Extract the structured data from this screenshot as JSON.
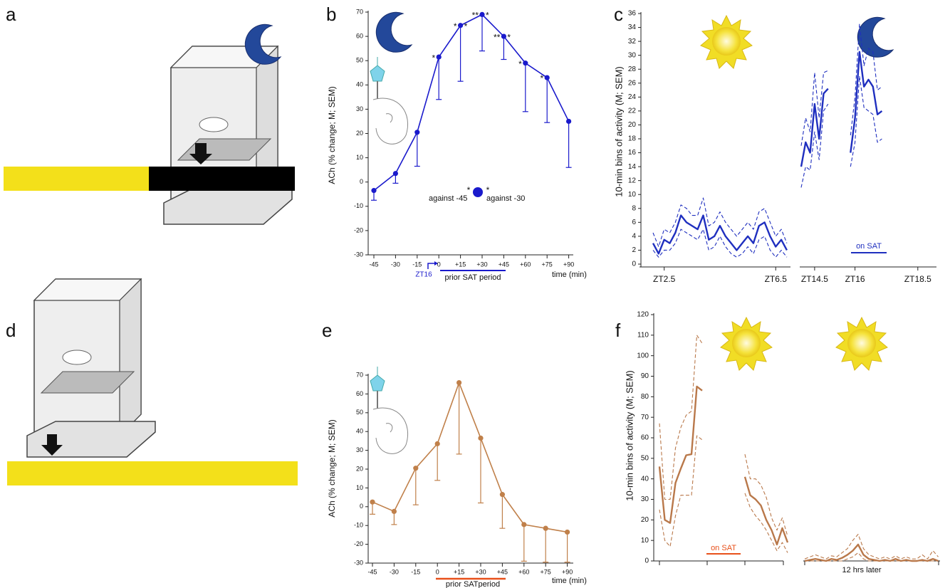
{
  "figure_labels": [
    "a",
    "b",
    "c",
    "d",
    "e",
    "f"
  ],
  "chart_data": [
    {
      "type": "line",
      "ylabel": "ACh (% change; M; SEM)",
      "xlabel": "time (min)",
      "zt_label": "ZT16",
      "period_label": "prior SAT period",
      "legend": {
        "left_label": "against -45",
        "left_mark": "*",
        "right_mark": "*",
        "right_label": "against -30"
      },
      "categories": [
        "-45",
        "-30",
        "-15",
        "0",
        "+15",
        "+30",
        "+45",
        "+60",
        "+75",
        "+90"
      ],
      "values": [
        -3.5,
        3.5,
        20.5,
        51.5,
        64.5,
        69,
        60,
        49,
        43,
        25
      ],
      "errors": [
        4,
        4,
        14,
        17.5,
        23,
        15,
        9.5,
        20,
        18.5,
        19
      ],
      "sig_left": [
        null,
        null,
        null,
        "*",
        "*",
        "**",
        "**",
        "*",
        "*",
        null
      ],
      "sig_right": [
        null,
        null,
        null,
        null,
        "*",
        "*",
        "*",
        null,
        null,
        null
      ],
      "color": "#1a1acc",
      "ylim": [
        -30,
        70
      ],
      "yticks": [
        -30,
        -20,
        -10,
        0,
        10,
        20,
        30,
        40,
        50,
        60,
        70
      ]
    },
    {
      "type": "line",
      "ylabel": "10-min bins of activity (M; SEM)",
      "categories": [
        null,
        null,
        "ZT2.5",
        null,
        null,
        null,
        null,
        null,
        null,
        null,
        null,
        null,
        null,
        null,
        null,
        null,
        null,
        null,
        null,
        null,
        null,
        null,
        "ZT6.5",
        null,
        null
      ],
      "series": [
        {
          "color": "#1f2fbf",
          "style": "solid",
          "values": [
            3,
            1.5,
            3.5,
            3,
            4.5,
            7,
            6,
            5.5,
            5,
            7,
            3.5,
            4,
            5.5,
            4,
            3,
            2,
            3,
            4,
            3,
            5.5,
            6,
            4,
            2.5,
            3.5,
            2
          ]
        },
        {
          "color": "#1f2fbf",
          "style": "dashed",
          "values": [
            4.5,
            2.5,
            5,
            4.5,
            6,
            8.5,
            8,
            7,
            7,
            9.5,
            5.5,
            6,
            7.5,
            6,
            5,
            4,
            5,
            6,
            5,
            7.5,
            8,
            6,
            4,
            5,
            3
          ]
        },
        {
          "color": "#1f2fbf",
          "style": "dashed",
          "values": [
            2,
            1,
            2,
            2,
            3,
            5,
            4.5,
            4,
            3.5,
            5,
            2,
            2.5,
            4,
            2.5,
            1.5,
            1,
            1.5,
            2.5,
            1.5,
            3.5,
            4,
            2,
            1,
            2,
            1
          ]
        }
      ],
      "ylim": [
        0,
        36
      ],
      "yticks": [
        0,
        2,
        4,
        6,
        8,
        10,
        12,
        14,
        16,
        18,
        20,
        22,
        24,
        26,
        28,
        30,
        32,
        34,
        36
      ]
    },
    {
      "type": "line",
      "annotation": "on SAT",
      "categories": [
        null,
        null,
        null,
        "ZT14.5",
        null,
        null,
        null,
        null,
        null,
        null,
        null,
        null,
        "ZT16",
        null,
        null,
        null,
        null,
        null,
        null,
        null,
        null,
        null,
        null,
        null,
        null,
        null,
        "ZT18.5",
        null,
        null,
        null
      ],
      "series": [
        {
          "color": "#1f2fbf",
          "style": "solid",
          "values": [
            14,
            17.5,
            16,
            23,
            18,
            24.5,
            25.2,
            null,
            null,
            null,
            null,
            16,
            21,
            30.5,
            25.5,
            26.5,
            25.5,
            21.5,
            22,
            null,
            null,
            null,
            null,
            null,
            null,
            null,
            null,
            null,
            null,
            null
          ]
        },
        {
          "color": "#1f2fbf",
          "style": "dashed",
          "values": [
            17,
            21,
            19,
            27.5,
            21,
            27.5,
            27.8,
            null,
            null,
            null,
            null,
            18.5,
            24,
            34.5,
            28.5,
            31,
            30.5,
            25,
            25.5,
            null,
            null,
            null,
            null,
            null,
            null,
            null,
            null,
            null,
            null,
            null
          ]
        },
        {
          "color": "#1f2fbf",
          "style": "dashed",
          "values": [
            11,
            14,
            13.5,
            19,
            15,
            22,
            23,
            null,
            null,
            null,
            null,
            14,
            17.5,
            27,
            22.5,
            22,
            21.5,
            17.5,
            18,
            null,
            null,
            null,
            null,
            null,
            null,
            null,
            null,
            null,
            null,
            null
          ]
        }
      ],
      "ylim": [
        0,
        36
      ]
    },
    {
      "type": "line",
      "ylabel": "ACh (% change; M; SEM)",
      "xlabel": "time (min)",
      "period_label": "prior SATperiod",
      "categories": [
        "-45",
        "-30",
        "-15",
        "0",
        "+15",
        "+30",
        "+45",
        "+60",
        "+75",
        "+90"
      ],
      "values": [
        2.5,
        -2.5,
        20.5,
        33.5,
        66,
        36.5,
        6.5,
        -9.5,
        -11.5,
        -13.5
      ],
      "errors": [
        6.5,
        7,
        19.5,
        19.5,
        38,
        34.5,
        18,
        19.5,
        18,
        16
      ],
      "color": "#c0804a",
      "ylim": [
        -30,
        70
      ],
      "yticks": [
        -30,
        -20,
        -10,
        0,
        10,
        20,
        30,
        40,
        50,
        60,
        70
      ]
    },
    {
      "type": "line",
      "ylabel": "10-min bins of activity (M; SEM)",
      "annotation": "on SAT",
      "categories": [
        null,
        null,
        null,
        null,
        null,
        null,
        null,
        null,
        null,
        null,
        null,
        null,
        null,
        null,
        null,
        null,
        null,
        null,
        null,
        null,
        null,
        null,
        null,
        null,
        null
      ],
      "series": [
        {
          "color": "#b9784a",
          "style": "solid",
          "values": [
            46,
            20,
            18.5,
            38,
            45,
            51.5,
            52,
            85,
            83,
            null,
            null,
            null,
            null,
            null,
            null,
            null,
            41,
            32,
            30,
            27,
            20,
            15,
            8,
            16,
            9
          ]
        },
        {
          "color": "#b9784a",
          "style": "dashed",
          "values": [
            67,
            30,
            30,
            55,
            65,
            71,
            73,
            110,
            106,
            null,
            null,
            null,
            null,
            null,
            null,
            null,
            52,
            40,
            40,
            37,
            31,
            21,
            15,
            21,
            12
          ]
        },
        {
          "color": "#b9784a",
          "style": "dashed",
          "values": [
            25,
            10,
            7,
            22,
            32,
            32,
            32,
            61,
            59,
            null,
            null,
            null,
            null,
            null,
            null,
            null,
            33,
            26,
            22,
            19,
            15,
            10,
            5,
            9,
            4
          ]
        }
      ],
      "ylim": [
        0,
        120
      ],
      "yticks": [
        0,
        10,
        20,
        30,
        40,
        50,
        60,
        70,
        80,
        90,
        100,
        110,
        120
      ]
    },
    {
      "type": "line",
      "xlabel": "12 hrs later",
      "categories": [
        null,
        null,
        null,
        null,
        null,
        null,
        null,
        null,
        null,
        null,
        null,
        null,
        null,
        null,
        null,
        null,
        null,
        null,
        null,
        null,
        null,
        null,
        null,
        null,
        null,
        null
      ],
      "series": [
        {
          "color": "#b9784a",
          "style": "solid",
          "values": [
            0,
            0.5,
            1,
            0.5,
            0,
            1,
            0.5,
            1.5,
            3,
            5,
            8,
            3,
            1,
            0.5,
            0,
            0.5,
            0,
            1,
            0,
            0.5,
            0,
            0,
            0.5,
            0,
            1,
            0
          ]
        },
        {
          "color": "#b9784a",
          "style": "dashed",
          "values": [
            1,
            2,
            3,
            2,
            1,
            2.5,
            2,
            4,
            6,
            10,
            13,
            6,
            3,
            2,
            1,
            2,
            1,
            2.5,
            1,
            2,
            1,
            1,
            3,
            1,
            5,
            2
          ]
        },
        {
          "color": "#b9784a",
          "style": "dashed",
          "values": [
            0,
            0,
            0,
            0,
            0,
            0,
            0,
            0,
            1,
            2,
            4,
            1,
            0,
            0,
            0,
            0,
            0,
            0,
            0,
            0,
            0,
            0,
            0,
            0,
            0,
            0
          ]
        }
      ],
      "ylim": [
        0,
        120
      ]
    }
  ]
}
